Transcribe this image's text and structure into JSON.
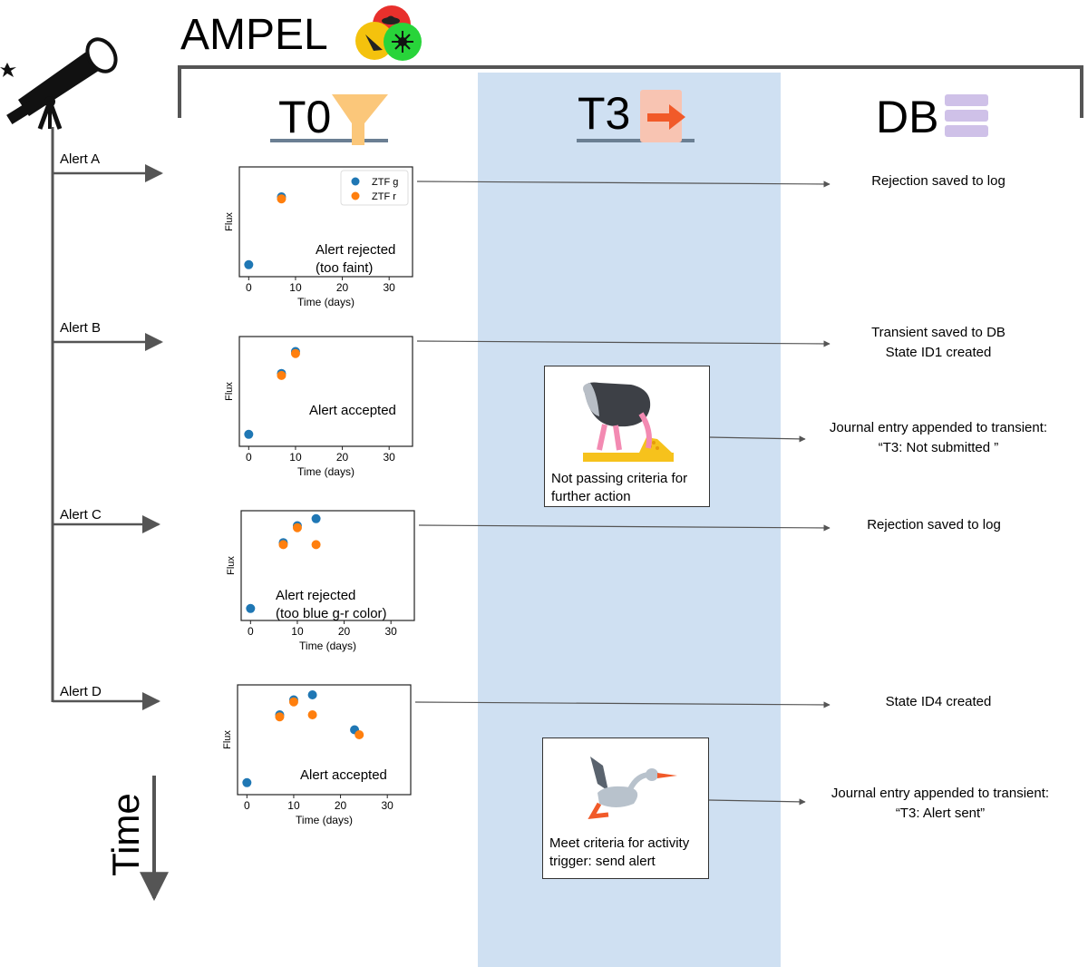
{
  "title": "AMPEL",
  "columns": {
    "t0": "T0",
    "t3": "T3",
    "db": "DB"
  },
  "time_label": "Time",
  "alerts": [
    {
      "label": "Alert A"
    },
    {
      "label": "Alert B"
    },
    {
      "label": "Alert C"
    },
    {
      "label": "Alert D"
    }
  ],
  "db_results": {
    "a": [
      "Rejection saved to log"
    ],
    "b": [
      "Transient saved to DB",
      "State ID1 created"
    ],
    "b_journal": [
      "Journal entry appended to transient:",
      "“T3: Not submitted ”"
    ],
    "c": [
      "Rejection saved to log"
    ],
    "d": [
      "State ID4 created"
    ],
    "d_journal": [
      "Journal entry appended to transient:",
      "“T3: Alert sent”"
    ]
  },
  "t3_boxes": {
    "b": [
      "Not passing criteria for",
      "further action"
    ],
    "d": [
      "Meet criteria for activity",
      "trigger: send alert"
    ]
  },
  "colors": {
    "ztf_g": "#1f77b4",
    "ztf_r": "#ff7f0e",
    "t3_band": "#cfe0f2",
    "axis_line": "#555555"
  },
  "chart_data": [
    {
      "type": "scatter",
      "xlabel": "Time (days)",
      "ylabel": "Flux",
      "xlim": [
        -2,
        35
      ],
      "ylim": [
        0,
        1.1
      ],
      "xticks": [
        0,
        10,
        20,
        30
      ],
      "annotation": [
        "Alert rejected",
        "(too faint)"
      ],
      "legend": "top-right",
      "series": [
        {
          "name": "ZTF g",
          "x": [
            0,
            7
          ],
          "y": [
            0.12,
            0.8
          ]
        },
        {
          "name": "ZTF r",
          "x": [
            7
          ],
          "y": [
            0.78
          ]
        }
      ]
    },
    {
      "type": "scatter",
      "xlabel": "Time (days)",
      "ylabel": "Flux",
      "xlim": [
        -2,
        35
      ],
      "ylim": [
        0,
        1.1
      ],
      "xticks": [
        0,
        10,
        20,
        30
      ],
      "annotation": [
        "Alert accepted"
      ],
      "series": [
        {
          "name": "",
          "x": [
            0,
            7,
            10
          ],
          "y": [
            0.12,
            0.73,
            0.95
          ]
        },
        {
          "name": "",
          "x": [
            7,
            10
          ],
          "y": [
            0.71,
            0.93
          ]
        }
      ]
    },
    {
      "type": "scatter",
      "xlabel": "Time (days)",
      "ylabel": "Flux",
      "xlim": [
        -2,
        35
      ],
      "ylim": [
        0,
        1.1
      ],
      "xticks": [
        0,
        10,
        20,
        30
      ],
      "annotation": [
        "Alert rejected",
        "(too blue g-r color)"
      ],
      "series": [
        {
          "name": "",
          "x": [
            0,
            7,
            10,
            14
          ],
          "y": [
            0.12,
            0.78,
            0.95,
            1.02
          ]
        },
        {
          "name": "",
          "x": [
            7,
            10,
            14
          ],
          "y": [
            0.76,
            0.93,
            0.76
          ]
        }
      ]
    },
    {
      "type": "scatter",
      "xlabel": "Time (days)",
      "ylabel": "Flux",
      "xlim": [
        -2,
        35
      ],
      "ylim": [
        0,
        1.1
      ],
      "xticks": [
        0,
        10,
        20,
        30
      ],
      "annotation": [
        "Alert accepted"
      ],
      "series": [
        {
          "name": "",
          "x": [
            0,
            7,
            10,
            14,
            23
          ],
          "y": [
            0.12,
            0.8,
            0.95,
            1.0,
            0.65
          ]
        },
        {
          "name": "",
          "x": [
            7,
            10,
            14,
            24
          ],
          "y": [
            0.78,
            0.93,
            0.8,
            0.6
          ]
        }
      ]
    }
  ]
}
